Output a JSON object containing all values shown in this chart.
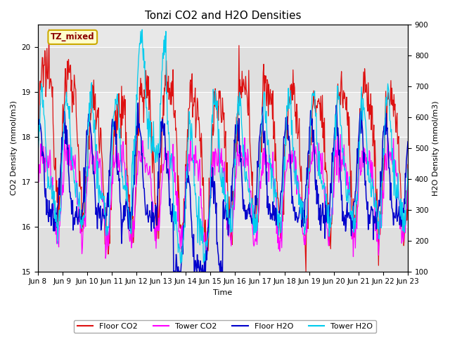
{
  "title": "Tonzi CO2 and H2O Densities",
  "xlabel": "Time",
  "ylabel_left": "CO2 Density (mmol/m3)",
  "ylabel_right": "H2O Density (mmol/m3)",
  "annotation": "TZ_mixed",
  "annotation_text_color": "#8b0000",
  "annotation_bg": "#ffffcc",
  "annotation_border": "#ccaa00",
  "ylim_left": [
    15.0,
    20.5
  ],
  "ylim_right": [
    100,
    900
  ],
  "xtick_labels": [
    "Jun 8",
    "Jun 9",
    "Jun 10",
    "Jun 11",
    "Jun 12",
    "Jun 13",
    "Jun 14",
    "Jun 15",
    "Jun 16",
    "Jun 17",
    "Jun 18",
    "Jun 19",
    "Jun 20",
    "Jun 21",
    "Jun 22",
    "Jun 23"
  ],
  "n_points": 720,
  "fig_bg": "#ffffff",
  "plot_bg": "#e8e8e8",
  "line_colors": {
    "floor_co2": "#dd1111",
    "tower_co2": "#ff00ff",
    "floor_h2o": "#0000cc",
    "tower_h2o": "#00ccee"
  },
  "legend_labels": [
    "Floor CO2",
    "Tower CO2",
    "Floor H2O",
    "Tower H2O"
  ],
  "title_fontsize": 11,
  "axis_fontsize": 8,
  "tick_fontsize": 7.5
}
